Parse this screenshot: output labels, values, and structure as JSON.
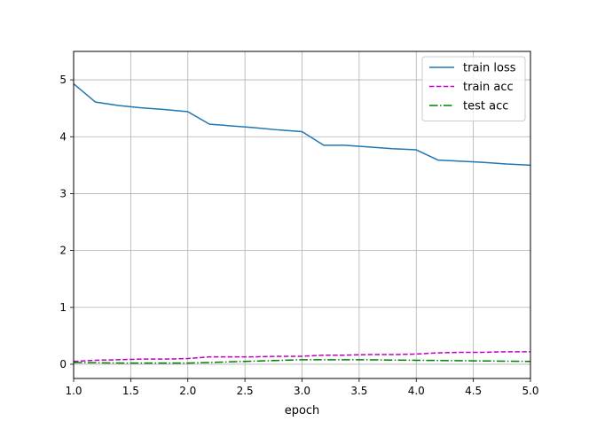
{
  "chart_data": {
    "type": "line",
    "title": "",
    "xlabel": "epoch",
    "ylabel": "",
    "xlim": [
      1.0,
      5.0
    ],
    "ylim": [
      -0.25,
      5.5
    ],
    "xticks": [
      1.0,
      1.5,
      2.0,
      2.5,
      3.0,
      3.5,
      4.0,
      4.5,
      5.0
    ],
    "xtick_labels": [
      "1.0",
      "1.5",
      "2.0",
      "2.5",
      "3.0",
      "3.5",
      "4.0",
      "4.5",
      "5.0"
    ],
    "yticks": [
      0,
      1,
      2,
      3,
      4,
      5
    ],
    "ytick_labels": [
      "0",
      "1",
      "2",
      "3",
      "4",
      "5"
    ],
    "grid": true,
    "legend_position": "top-right",
    "series": [
      {
        "name": "train loss",
        "color": "#1f77b4",
        "style": "solid",
        "x": [
          1.0,
          1.19,
          1.39,
          1.58,
          1.79,
          2.0,
          2.19,
          2.39,
          2.58,
          2.79,
          3.0,
          3.19,
          3.37,
          3.58,
          3.79,
          4.0,
          4.19,
          4.39,
          4.58,
          4.79,
          5.0
        ],
        "y": [
          4.93,
          4.61,
          4.55,
          4.51,
          4.48,
          4.44,
          4.22,
          4.19,
          4.16,
          4.12,
          4.09,
          3.85,
          3.85,
          3.82,
          3.79,
          3.77,
          3.59,
          3.57,
          3.55,
          3.52,
          3.5
        ]
      },
      {
        "name": "train acc",
        "color": "#bf00bf",
        "style": "dashed",
        "x": [
          1.0,
          1.19,
          1.39,
          1.58,
          1.79,
          2.0,
          2.19,
          2.39,
          2.58,
          2.79,
          3.0,
          3.19,
          3.37,
          3.58,
          3.79,
          4.0,
          4.19,
          4.39,
          4.58,
          4.79,
          5.0
        ],
        "y": [
          0.05,
          0.07,
          0.08,
          0.09,
          0.09,
          0.1,
          0.13,
          0.13,
          0.13,
          0.14,
          0.14,
          0.16,
          0.16,
          0.17,
          0.17,
          0.18,
          0.2,
          0.21,
          0.21,
          0.22,
          0.22
        ]
      },
      {
        "name": "test acc",
        "color": "#008000",
        "style": "dashdot",
        "x": [
          1.0,
          1.5,
          2.0,
          2.5,
          3.0,
          3.5,
          4.0,
          4.5,
          5.0
        ],
        "y": [
          0.03,
          0.02,
          0.02,
          0.05,
          0.08,
          0.08,
          0.07,
          0.06,
          0.05
        ]
      }
    ]
  }
}
